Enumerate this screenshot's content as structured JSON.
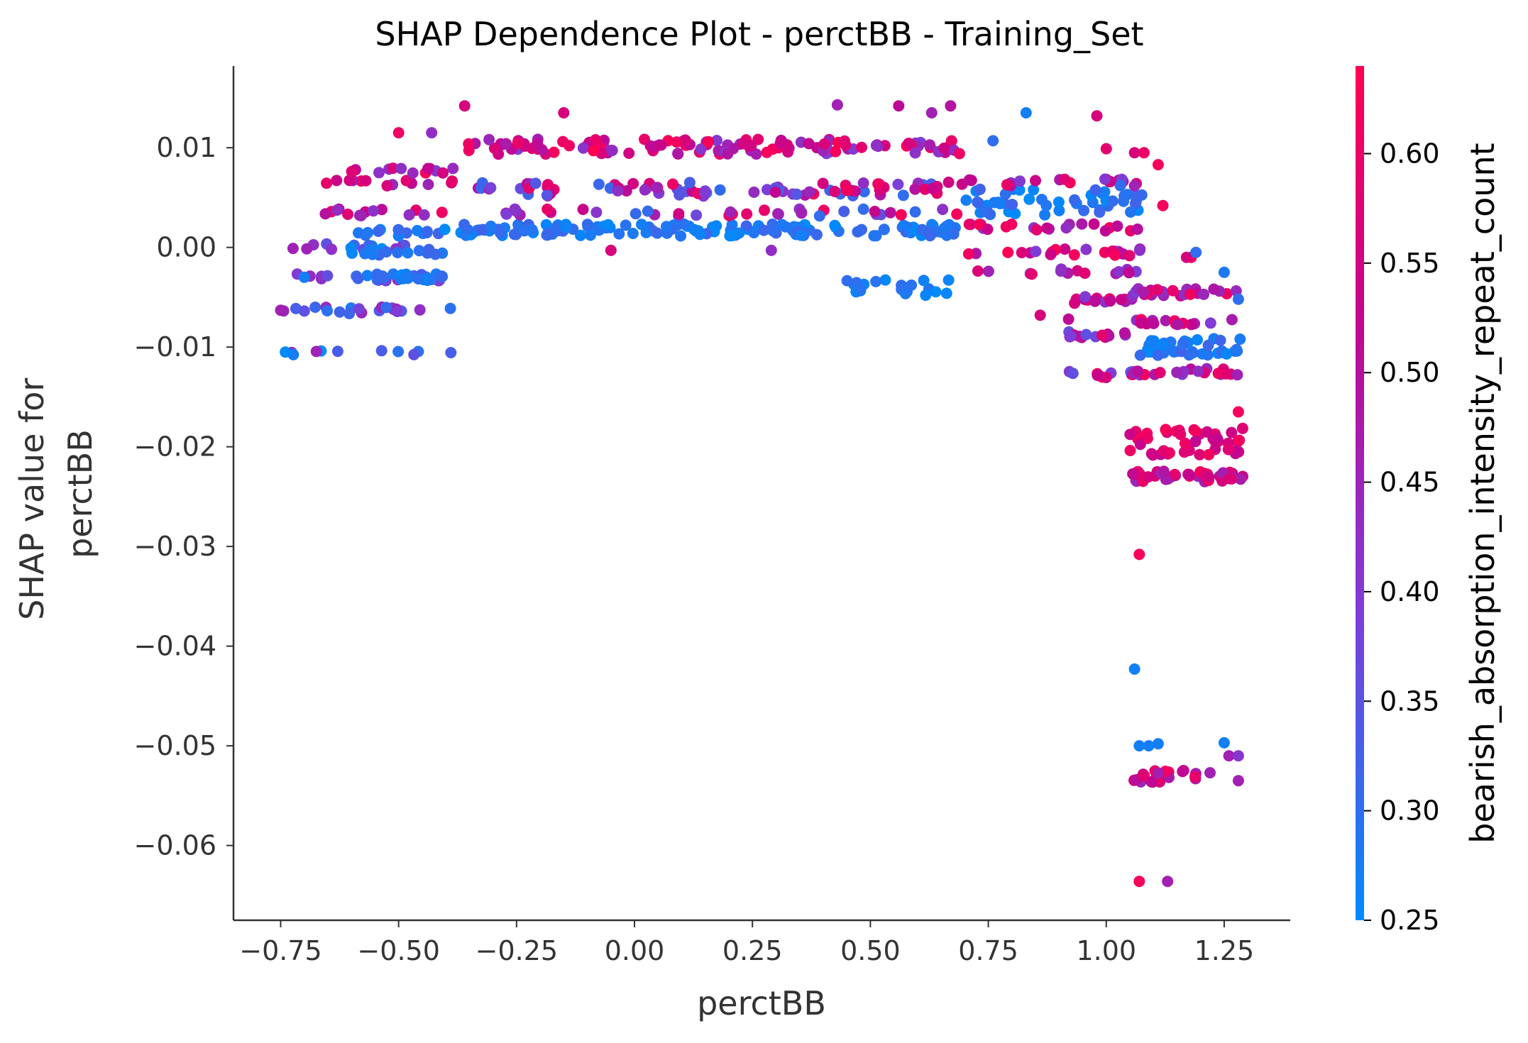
{
  "chart_data": {
    "type": "scatter",
    "title": "SHAP Dependence Plot - perctBB - Training_Set",
    "xlabel": "perctBB",
    "ylabel_lines": [
      "SHAP value for",
      "perctBB"
    ],
    "xlim": [
      -0.85,
      1.39
    ],
    "ylim": [
      -0.0675,
      0.0182
    ],
    "x_ticks": [
      -0.75,
      -0.5,
      -0.25,
      0.0,
      0.25,
      0.5,
      0.75,
      1.0,
      1.25
    ],
    "x_tick_labels": [
      "−0.75",
      "−0.50",
      "−0.25",
      "0.00",
      "0.25",
      "0.50",
      "0.75",
      "1.00",
      "1.25"
    ],
    "y_ticks": [
      0.01,
      0.0,
      -0.01,
      -0.02,
      -0.03,
      -0.04,
      -0.05,
      -0.06
    ],
    "y_tick_labels": [
      "0.01",
      "0.00",
      "−0.01",
      "−0.02",
      "−0.03",
      "−0.04",
      "−0.05",
      "−0.06"
    ],
    "grid": false,
    "colorbar": {
      "label": "bearish_absorption_intensity_repeat_count",
      "range": [
        0.25,
        0.64
      ],
      "ticks": [
        0.25,
        0.3,
        0.35,
        0.4,
        0.45,
        0.5,
        0.55,
        0.6
      ],
      "tick_labels": [
        "0.25",
        "0.30",
        "0.35",
        "0.40",
        "0.45",
        "0.50",
        "0.55",
        "0.60"
      ],
      "colors": [
        "#008bfb",
        "#7c3fd9",
        "#c20690",
        "#ff0052"
      ]
    },
    "clusters": [
      {
        "x": [
          -0.76,
          -0.38
        ],
        "ys": [
          -0.0105,
          -0.0063,
          -0.003,
          0.0
        ],
        "c": [
          0.25,
          0.45
        ],
        "n": 60
      },
      {
        "x": [
          -0.66,
          -0.38
        ],
        "ys": [
          0.0035,
          0.0078,
          0.0065
        ],
        "c": [
          0.4,
          0.62
        ],
        "n": 40
      },
      {
        "x": [
          -0.6,
          -0.4
        ],
        "ys": [
          -0.003,
          -0.0005,
          0.0015
        ],
        "c": [
          0.25,
          0.32
        ],
        "n": 50
      },
      {
        "x": [
          -0.37,
          0.7
        ],
        "ys": [
          0.0015,
          0.002
        ],
        "c": [
          0.25,
          0.32
        ],
        "n": 140
      },
      {
        "x": [
          -0.37,
          0.7
        ],
        "ys": [
          0.0055,
          0.0035,
          0.0062
        ],
        "c": [
          0.3,
          0.62
        ],
        "n": 120
      },
      {
        "x": [
          -0.37,
          0.7
        ],
        "ys": [
          0.0097,
          0.0105
        ],
        "c": [
          0.38,
          0.64
        ],
        "n": 120
      },
      {
        "x": [
          0.45,
          0.7
        ],
        "ys": [
          -0.0035,
          -0.0045
        ],
        "c": [
          0.25,
          0.3
        ],
        "n": 20
      },
      {
        "x": [
          0.7,
          1.08
        ],
        "ys": [
          0.0055,
          0.0035,
          0.0045
        ],
        "c": [
          0.25,
          0.32
        ],
        "n": 50
      },
      {
        "x": [
          0.7,
          1.08
        ],
        "ys": [
          -0.0025,
          -0.0005,
          0.002,
          0.0065
        ],
        "c": [
          0.38,
          0.64
        ],
        "n": 80
      },
      {
        "x": [
          0.92,
          1.06
        ],
        "ys": [
          -0.0128,
          -0.0088,
          -0.0053
        ],
        "c": [
          0.35,
          0.62
        ],
        "n": 40
      },
      {
        "x": [
          1.05,
          1.29
        ],
        "ys": [
          -0.0095,
          -0.0105
        ],
        "c": [
          0.25,
          0.32
        ],
        "n": 40
      },
      {
        "x": [
          1.05,
          1.29
        ],
        "ys": [
          -0.0075,
          -0.0125,
          -0.0045
        ],
        "c": [
          0.38,
          0.62
        ],
        "n": 60
      },
      {
        "x": [
          1.05,
          1.29
        ],
        "ys": [
          -0.0185,
          -0.0195,
          -0.0205
        ],
        "c": [
          0.5,
          0.62
        ],
        "n": 45
      },
      {
        "x": [
          1.05,
          1.29
        ],
        "ys": [
          -0.0228,
          -0.0232
        ],
        "c": [
          0.42,
          0.62
        ],
        "n": 45
      },
      {
        "x": [
          1.05,
          1.2
        ],
        "ys": [
          -0.0528,
          -0.0533
        ],
        "c": [
          0.42,
          0.62
        ],
        "n": 25
      }
    ],
    "points": [
      {
        "x": -0.36,
        "y": 0.0142,
        "c": 0.55
      },
      {
        "x": -0.5,
        "y": 0.0115,
        "c": 0.6
      },
      {
        "x": -0.43,
        "y": 0.0115,
        "c": 0.42
      },
      {
        "x": -0.15,
        "y": 0.0135,
        "c": 0.55
      },
      {
        "x": 0.43,
        "y": 0.0143,
        "c": 0.45
      },
      {
        "x": 0.56,
        "y": 0.0142,
        "c": 0.5
      },
      {
        "x": 0.63,
        "y": 0.0135,
        "c": 0.45
      },
      {
        "x": 0.67,
        "y": 0.0142,
        "c": 0.48
      },
      {
        "x": 0.83,
        "y": 0.0135,
        "c": 0.27
      },
      {
        "x": 0.76,
        "y": 0.0107,
        "c": 0.3
      },
      {
        "x": 0.98,
        "y": 0.0132,
        "c": 0.55
      },
      {
        "x": 1.0,
        "y": 0.0099,
        "c": 0.58
      },
      {
        "x": 1.11,
        "y": 0.0083,
        "c": 0.62
      },
      {
        "x": 1.12,
        "y": 0.0042,
        "c": 0.62
      },
      {
        "x": 1.06,
        "y": 0.0095,
        "c": 0.55
      },
      {
        "x": 1.08,
        "y": 0.0095,
        "c": 0.6
      },
      {
        "x": 1.03,
        "y": 0.0062,
        "c": 0.3
      },
      {
        "x": 0.86,
        "y": -0.0068,
        "c": 0.55
      },
      {
        "x": 0.92,
        "y": -0.0072,
        "c": 0.5
      },
      {
        "x": -0.75,
        "y": -0.0063,
        "c": 0.45
      },
      {
        "x": -0.74,
        "y": -0.0105,
        "c": 0.25
      },
      {
        "x": -0.7,
        "y": -0.003,
        "c": 0.27
      },
      {
        "x": -0.05,
        "y": -0.0003,
        "c": 0.55
      },
      {
        "x": 0.29,
        "y": -0.0003,
        "c": 0.42
      },
      {
        "x": 1.07,
        "y": -0.0308,
        "c": 0.62
      },
      {
        "x": 1.06,
        "y": -0.0423,
        "c": 0.27
      },
      {
        "x": 1.07,
        "y": -0.05,
        "c": 0.27
      },
      {
        "x": 1.09,
        "y": -0.05,
        "c": 0.27
      },
      {
        "x": 1.11,
        "y": -0.0498,
        "c": 0.27
      },
      {
        "x": 1.25,
        "y": -0.0497,
        "c": 0.27
      },
      {
        "x": 1.26,
        "y": -0.051,
        "c": 0.45
      },
      {
        "x": 1.28,
        "y": -0.051,
        "c": 0.4
      },
      {
        "x": 1.28,
        "y": -0.0535,
        "c": 0.45
      },
      {
        "x": 1.22,
        "y": -0.0527,
        "c": 0.45
      },
      {
        "x": 1.07,
        "y": -0.0636,
        "c": 0.62
      },
      {
        "x": 1.13,
        "y": -0.0636,
        "c": 0.45
      },
      {
        "x": 1.28,
        "y": -0.0165,
        "c": 0.62
      },
      {
        "x": 1.18,
        "y": -0.001,
        "c": 0.62
      },
      {
        "x": 1.17,
        "y": -0.001,
        "c": 0.55
      },
      {
        "x": 1.19,
        "y": -0.0005,
        "c": 0.3
      },
      {
        "x": 1.25,
        "y": -0.0025,
        "c": 0.28
      },
      {
        "x": 1.28,
        "y": -0.0052,
        "c": 0.3
      }
    ]
  }
}
